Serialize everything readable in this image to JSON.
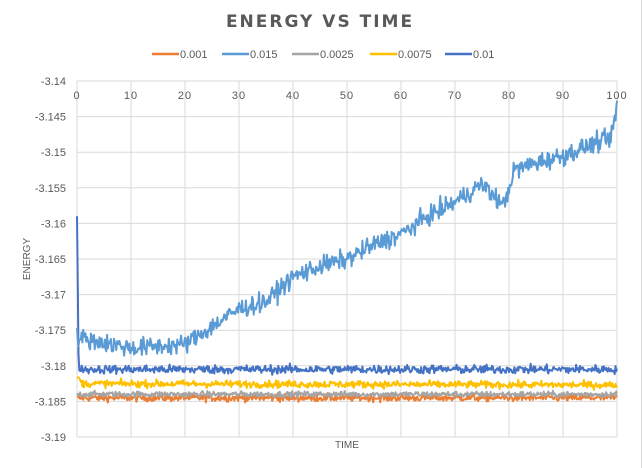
{
  "chart_data": {
    "type": "line",
    "title": "ENERGY VS TIME",
    "xlabel": "TIME",
    "ylabel": "ENERGY",
    "xlim": [
      0,
      100
    ],
    "ylim": [
      -3.19,
      -3.14
    ],
    "x_ticks": [
      "0",
      "10",
      "20",
      "30",
      "40",
      "50",
      "60",
      "70",
      "80",
      "90",
      "100"
    ],
    "y_ticks": [
      "-3.14",
      "-3.145",
      "-3.15",
      "-3.155",
      "-3.16",
      "-3.165",
      "-3.17",
      "-3.175",
      "-3.18",
      "-3.185",
      "-3.19"
    ],
    "grid": true,
    "legend_position": "top",
    "x_axis_position": "top",
    "series": [
      {
        "name": "0.001",
        "color": "#ED7D31",
        "noise": 0.0005,
        "trend_x": [
          0,
          100
        ],
        "trend_y": [
          -3.1845,
          -3.1845
        ]
      },
      {
        "name": "0.015",
        "color": "#5B9BD5",
        "noise": 0.0013,
        "trend_x": [
          0,
          10,
          20,
          25,
          30,
          35,
          40,
          45,
          50,
          55,
          60,
          65,
          70,
          75,
          79,
          81,
          85,
          90,
          95,
          99,
          100
        ],
        "trend_y": [
          -3.176,
          -3.1775,
          -3.177,
          -3.1745,
          -3.172,
          -3.171,
          -3.1675,
          -3.166,
          -3.165,
          -3.163,
          -3.1615,
          -3.159,
          -3.157,
          -3.1545,
          -3.1575,
          -3.1525,
          -3.1515,
          -3.1505,
          -3.149,
          -3.148,
          -3.143
        ]
      },
      {
        "name": "0.0025",
        "color": "#A5A5A5",
        "noise": 0.0004,
        "trend_x": [
          0,
          100
        ],
        "trend_y": [
          -3.184,
          -3.184
        ]
      },
      {
        "name": "0.0075",
        "color": "#FFC000",
        "noise": 0.0005,
        "trend_x": [
          0,
          1,
          100
        ],
        "trend_y": [
          -3.1815,
          -3.1825,
          -3.1827
        ]
      },
      {
        "name": "0.01",
        "color": "#4472C4",
        "noise": 0.0006,
        "trend_x": [
          0,
          0.3,
          1,
          100
        ],
        "trend_y": [
          -3.159,
          -3.18,
          -3.1805,
          -3.1805
        ]
      }
    ]
  }
}
